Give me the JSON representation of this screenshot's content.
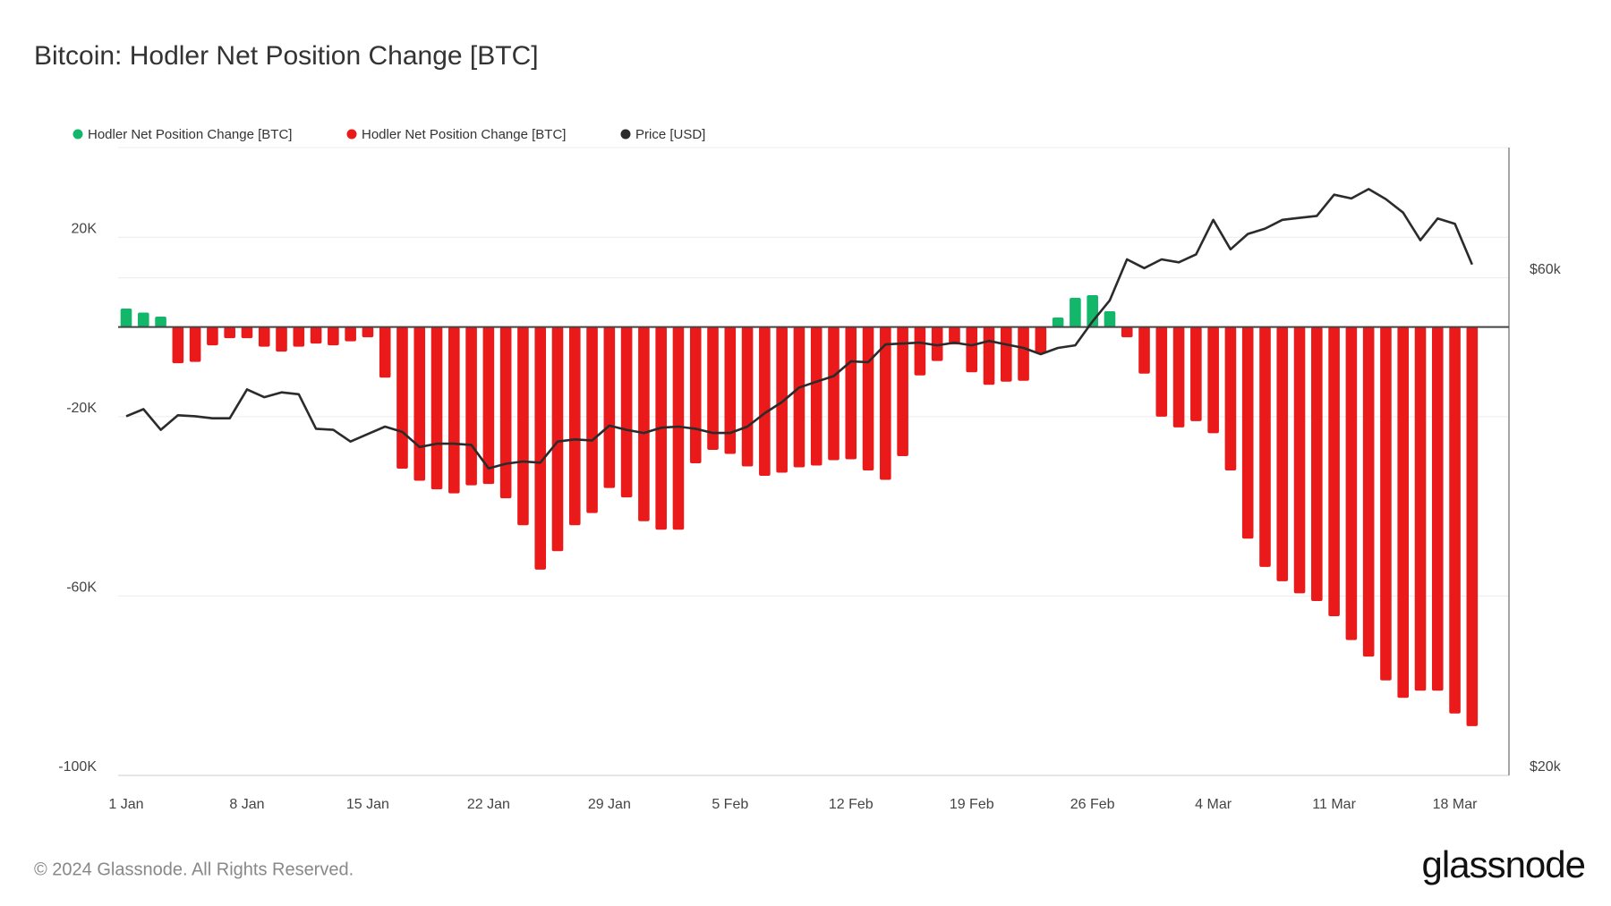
{
  "chart_data": {
    "type": "bar",
    "title": "Bitcoin: Hodler Net Position Change [BTC]",
    "categories": [
      "1 Jan",
      null,
      null,
      null,
      null,
      null,
      null,
      "8 Jan",
      null,
      null,
      null,
      null,
      null,
      null,
      "15 Jan",
      null,
      null,
      null,
      null,
      null,
      null,
      "22 Jan",
      null,
      null,
      null,
      null,
      null,
      null,
      "29 Jan",
      null,
      null,
      null,
      null,
      null,
      null,
      "5 Feb",
      null,
      null,
      null,
      null,
      null,
      null,
      "12 Feb",
      null,
      null,
      null,
      null,
      null,
      null,
      "19 Feb",
      null,
      null,
      null,
      null,
      null,
      null,
      "26 Feb",
      null,
      null,
      null,
      null,
      null,
      null,
      "4 Mar",
      null,
      null,
      null,
      null,
      null,
      null,
      "11 Mar",
      null,
      null,
      null,
      null,
      null,
      null,
      "18 Mar",
      null
    ],
    "series": [
      {
        "name": "Hodler Net Position Change [BTC]",
        "color": "#12b76a",
        "type": "bar",
        "values": [
          4100,
          3200,
          2300,
          null,
          null,
          null,
          null,
          null,
          null,
          null,
          null,
          null,
          null,
          null,
          null,
          null,
          null,
          null,
          null,
          null,
          null,
          null,
          null,
          null,
          null,
          null,
          null,
          null,
          null,
          null,
          null,
          null,
          null,
          null,
          null,
          null,
          null,
          null,
          null,
          null,
          null,
          null,
          null,
          null,
          null,
          null,
          null,
          null,
          null,
          null,
          null,
          null,
          null,
          null,
          2100,
          6500,
          7100,
          3500,
          null,
          null,
          null,
          null,
          null,
          null,
          null,
          null,
          null,
          null,
          null,
          null,
          null,
          null,
          null,
          null,
          null,
          null,
          null,
          null,
          null
        ]
      },
      {
        "name": "Hodler Net Position Change [BTC]",
        "color": "#ea1a1a",
        "type": "bar",
        "values": [
          null,
          null,
          null,
          -8100,
          -7800,
          -4100,
          -2500,
          -2500,
          -4400,
          -5500,
          -4400,
          -3700,
          -4100,
          -3200,
          -2300,
          -11300,
          -31600,
          -34300,
          -36200,
          -37100,
          -35300,
          -35000,
          -38200,
          -44200,
          -54100,
          -50000,
          -44200,
          -41500,
          -35900,
          -38000,
          -43300,
          -45200,
          -45200,
          -30400,
          -27400,
          -28300,
          -31100,
          -33200,
          -32500,
          -31300,
          -30900,
          -29700,
          -29500,
          -32000,
          -34100,
          -28800,
          -10800,
          -7600,
          -3900,
          -10100,
          -12900,
          -12200,
          -12000,
          -5800,
          null,
          null,
          null,
          null,
          -2300,
          -10400,
          -20000,
          -22400,
          -21000,
          -23700,
          -32000,
          -47200,
          -53500,
          -56700,
          -59400,
          -61100,
          -64500,
          -69800,
          -73500,
          -78800,
          -82700,
          -81100,
          -81100,
          -86200,
          -89000
        ]
      },
      {
        "name": "Price [USD]",
        "color": "#2b2b2b",
        "type": "line",
        "axis": "y2",
        "values": [
          44200,
          44900,
          42900,
          44300,
          44200,
          44000,
          44000,
          46900,
          46100,
          46600,
          46400,
          43000,
          42900,
          41800,
          42500,
          43200,
          42700,
          41300,
          41600,
          41600,
          41500,
          39400,
          39800,
          40000,
          39900,
          41800,
          42000,
          41900,
          43300,
          42900,
          42600,
          43100,
          43200,
          43000,
          42600,
          42600,
          43200,
          44500,
          45600,
          47100,
          47700,
          48300,
          49900,
          49800,
          51800,
          51900,
          52000,
          51700,
          52000,
          51700,
          52200,
          51800,
          51400,
          50700,
          51400,
          51700,
          54500,
          57100,
          62500,
          61300,
          62500,
          62100,
          63200,
          68200,
          63900,
          66100,
          66900,
          68200,
          68500,
          68800,
          72100,
          71500,
          73000,
          71400,
          69300,
          65200,
          68400,
          67600,
          61800
        ]
      }
    ],
    "ylim": [
      -100000,
      40000
    ],
    "yticks": [
      {
        "value": -100000,
        "label": "-100K"
      },
      {
        "value": -60000,
        "label": "-60K"
      },
      {
        "value": -20000,
        "label": "-20K"
      },
      {
        "value": 20000,
        "label": "20K"
      }
    ],
    "y2lim": [
      20000,
      80000
    ],
    "y2ticks": [
      {
        "value": 20000,
        "label": "$20k"
      },
      {
        "value": 60000,
        "label": "$60k"
      }
    ],
    "y2log": true,
    "grid": true,
    "legend": "top-left"
  },
  "footer": {
    "copyright": "© 2024 Glassnode. All Rights Reserved.",
    "brand": "glassnode"
  }
}
